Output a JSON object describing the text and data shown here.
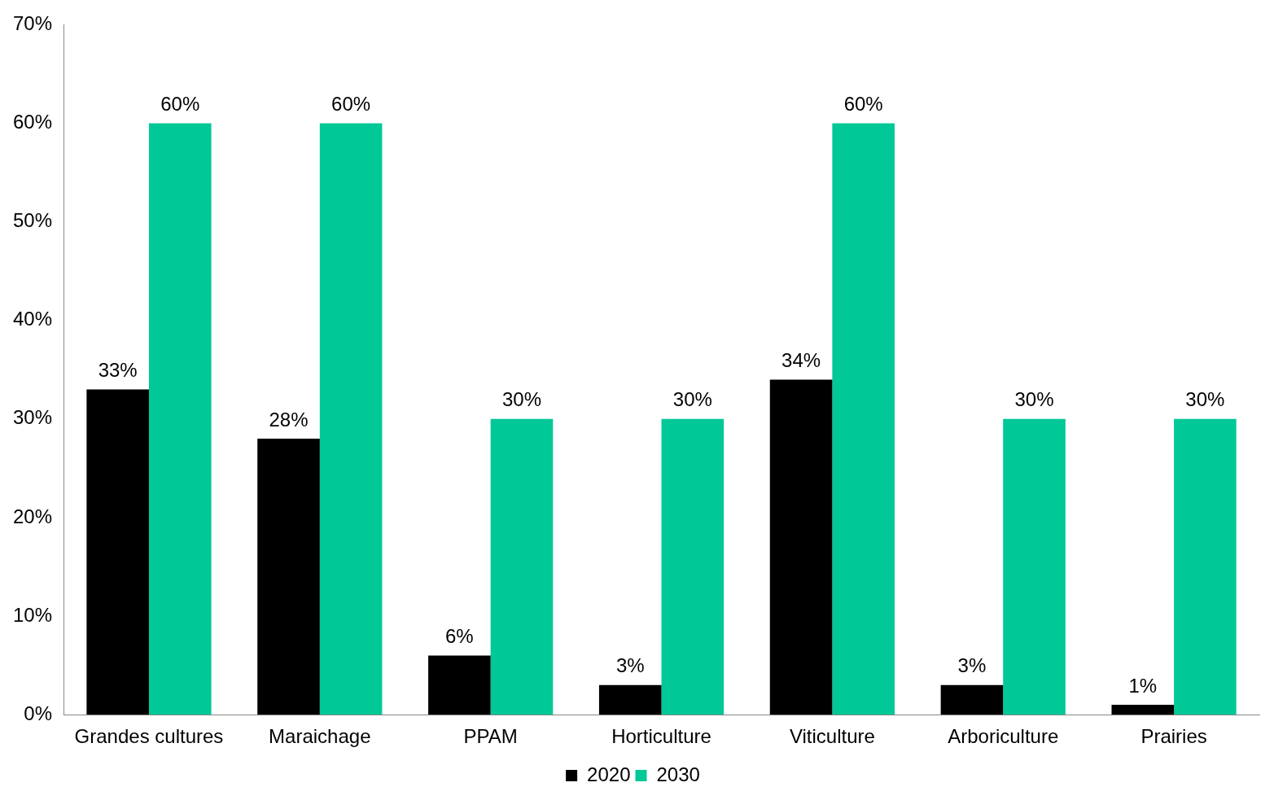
{
  "chart_data": {
    "type": "bar",
    "categories": [
      "Grandes cultures",
      "Maraichage",
      "PPAM",
      "Horticulture",
      "Viticulture",
      "Arboriculture",
      "Prairies"
    ],
    "series": [
      {
        "name": "2020",
        "color": "#000000",
        "values": [
          33,
          28,
          6,
          3,
          34,
          3,
          1
        ],
        "value_labels": [
          "33%",
          "28%",
          "6%",
          "3%",
          "34%",
          "3%",
          "1%"
        ]
      },
      {
        "name": "2030",
        "color": "#00c896",
        "values": [
          60,
          60,
          30,
          30,
          60,
          30,
          30
        ],
        "value_labels": [
          "60%",
          "60%",
          "30%",
          "30%",
          "60%",
          "30%",
          "30%"
        ]
      }
    ],
    "ylim": [
      0,
      70
    ],
    "yticks": [
      {
        "value": 0,
        "label": "0%"
      },
      {
        "value": 10,
        "label": "10%"
      },
      {
        "value": 20,
        "label": "20%"
      },
      {
        "value": 30,
        "label": "30%"
      },
      {
        "value": 40,
        "label": "40%"
      },
      {
        "value": 50,
        "label": "50%"
      },
      {
        "value": 60,
        "label": "60%"
      },
      {
        "value": 70,
        "label": "70%"
      }
    ],
    "grid": false,
    "legend": "bottom"
  }
}
